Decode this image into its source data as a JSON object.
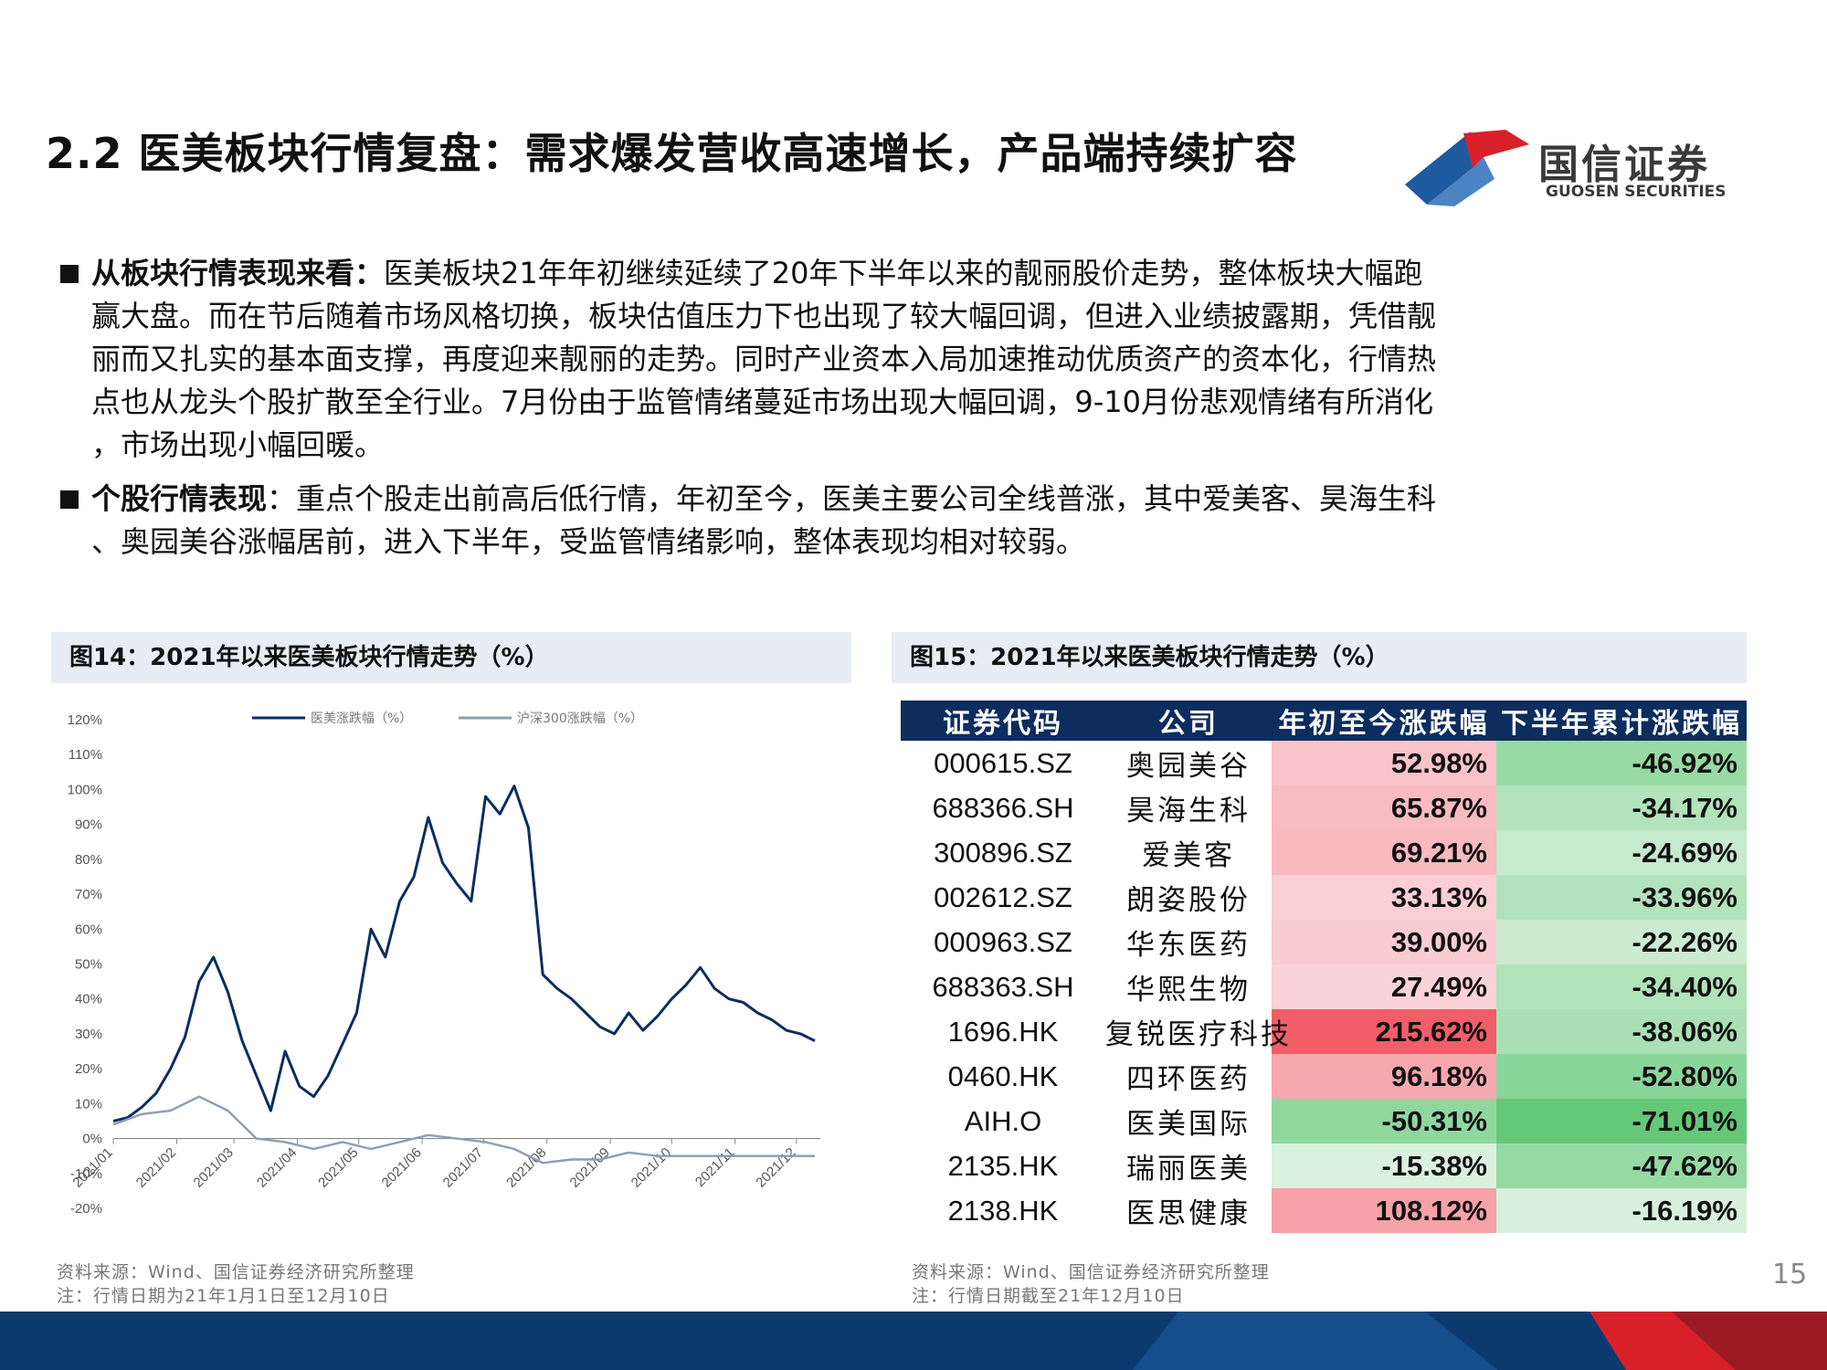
{
  "header": {
    "title": "2.2 医美板块行情复盘：需求爆发营收高速增长，产品端持续扩容",
    "logo_name": "国信证券",
    "logo_sub": "GUOSEN SECURITIES"
  },
  "bullets": [
    {
      "lead": "从板块行情表现来看：",
      "lines": [
        "医美板块21年年初继续延续了20年下半年以来的靓丽股价走势，整体板块大幅跑",
        "赢大盘。而在节后随着市场风格切换，板块估值压力下也出现了较大幅回调，但进入业绩披露期，凭借靓",
        "丽而又扎实的基本面支撑，再度迎来靓丽的走势。同时产业资本入局加速推动优质资产的资本化，行情热",
        "点也从龙头个股扩散至全行业。7月份由于监管情绪蔓延市场出现大幅回调，9-10月份悲观情绪有所消化",
        "，市场出现小幅回暖。"
      ]
    },
    {
      "lead": "个股行情表现",
      "lines": [
        "：重点个股走出前高后低行情，年初至今，医美主要公司全线普涨，其中爱美客、昊海生科",
        "、奥园美谷涨幅居前，进入下半年，受监管情绪影响，整体表现均相对较弱。"
      ]
    }
  ],
  "fig14": {
    "title": "图14：2021年以来医美板块行情走势（%）",
    "source": "资料来源：Wind、国信证券经济研究所整理",
    "note": "注：行情日期为21年1月1日至12月10日"
  },
  "fig15": {
    "title": "图15：2021年以来医美板块行情走势（%）",
    "source": "资料来源：Wind、国信证券经济研究所整理",
    "note": "注：行情日期截至21年12月10日"
  },
  "page_number": "15",
  "colors": {
    "navy": "#0c2d5e",
    "gray_series": "#8f9db1",
    "logo_red": "#d8202b",
    "logo_blue": "#1e5aa0"
  },
  "chart_data": {
    "type": "line",
    "title": "",
    "ylim": [
      -20,
      120
    ],
    "yticks": [
      "-20%",
      "-10%",
      "0%",
      "10%",
      "20%",
      "30%",
      "40%",
      "50%",
      "60%",
      "70%",
      "80%",
      "90%",
      "100%",
      "110%",
      "120%"
    ],
    "xticks": [
      "2021/01",
      "2021/02",
      "2021/03",
      "2021/04",
      "2021/05",
      "2021/06",
      "2021/07",
      "2021/08",
      "2021/09",
      "2021/10",
      "2021/11",
      "2021/12"
    ],
    "legend_position": "top-center",
    "grid": false,
    "series": [
      {
        "name": "医美涨跌幅（%）",
        "color": "#0c2d5e",
        "points": [
          [
            "2021-01-01",
            5
          ],
          [
            "2021-01-08",
            6
          ],
          [
            "2021-01-15",
            9
          ],
          [
            "2021-01-22",
            13
          ],
          [
            "2021-01-29",
            20
          ],
          [
            "2021-02-05",
            29
          ],
          [
            "2021-02-12",
            45
          ],
          [
            "2021-02-19",
            52
          ],
          [
            "2021-02-26",
            42
          ],
          [
            "2021-03-05",
            28
          ],
          [
            "2021-03-12",
            18
          ],
          [
            "2021-03-19",
            8
          ],
          [
            "2021-03-26",
            25
          ],
          [
            "2021-04-02",
            15
          ],
          [
            "2021-04-09",
            12
          ],
          [
            "2021-04-16",
            18
          ],
          [
            "2021-04-23",
            27
          ],
          [
            "2021-04-30",
            36
          ],
          [
            "2021-05-07",
            60
          ],
          [
            "2021-05-14",
            52
          ],
          [
            "2021-05-21",
            68
          ],
          [
            "2021-05-28",
            75
          ],
          [
            "2021-06-04",
            92
          ],
          [
            "2021-06-11",
            79
          ],
          [
            "2021-06-18",
            73
          ],
          [
            "2021-06-25",
            68
          ],
          [
            "2021-07-02",
            98
          ],
          [
            "2021-07-09",
            93
          ],
          [
            "2021-07-16",
            101
          ],
          [
            "2021-07-23",
            89
          ],
          [
            "2021-07-30",
            47
          ],
          [
            "2021-08-06",
            43
          ],
          [
            "2021-08-13",
            40
          ],
          [
            "2021-08-20",
            36
          ],
          [
            "2021-08-27",
            32
          ],
          [
            "2021-09-03",
            30
          ],
          [
            "2021-09-10",
            36
          ],
          [
            "2021-09-17",
            31
          ],
          [
            "2021-09-24",
            35
          ],
          [
            "2021-10-01",
            40
          ],
          [
            "2021-10-08",
            44
          ],
          [
            "2021-10-15",
            49
          ],
          [
            "2021-10-22",
            43
          ],
          [
            "2021-10-29",
            40
          ],
          [
            "2021-11-05",
            39
          ],
          [
            "2021-11-12",
            36
          ],
          [
            "2021-11-19",
            34
          ],
          [
            "2021-11-26",
            31
          ],
          [
            "2021-12-03",
            30
          ],
          [
            "2021-12-10",
            28
          ]
        ]
      },
      {
        "name": "沪深300涨跌幅（%）",
        "color": "#8f9db1",
        "points": [
          [
            "2021-01-01",
            4
          ],
          [
            "2021-01-15",
            7
          ],
          [
            "2021-01-29",
            8
          ],
          [
            "2021-02-12",
            12
          ],
          [
            "2021-02-26",
            8
          ],
          [
            "2021-03-12",
            0
          ],
          [
            "2021-03-26",
            -1
          ],
          [
            "2021-04-09",
            -3
          ],
          [
            "2021-04-23",
            -1
          ],
          [
            "2021-05-07",
            -3
          ],
          [
            "2021-05-21",
            -1
          ],
          [
            "2021-06-04",
            1
          ],
          [
            "2021-06-18",
            0
          ],
          [
            "2021-07-02",
            -1
          ],
          [
            "2021-07-16",
            -3
          ],
          [
            "2021-07-30",
            -7
          ],
          [
            "2021-08-13",
            -6
          ],
          [
            "2021-08-27",
            -6
          ],
          [
            "2021-09-10",
            -4
          ],
          [
            "2021-09-24",
            -5
          ],
          [
            "2021-10-08",
            -5
          ],
          [
            "2021-10-22",
            -5
          ],
          [
            "2021-11-05",
            -5
          ],
          [
            "2021-11-19",
            -5
          ],
          [
            "2021-12-03",
            -5
          ],
          [
            "2021-12-10",
            -5
          ]
        ]
      }
    ]
  },
  "table": {
    "headers": [
      "证券代码",
      "公司",
      "年初至今涨跌幅",
      "下半年累计涨跌幅"
    ],
    "rows": [
      {
        "code": "000615.SZ",
        "company": "奥园美谷",
        "ytd": "52.98%",
        "ytd_value": 52.98,
        "h2": "-46.92%",
        "h2_value": -46.92
      },
      {
        "code": "688366.SH",
        "company": "昊海生科",
        "ytd": "65.87%",
        "ytd_value": 65.87,
        "h2": "-34.17%",
        "h2_value": -34.17
      },
      {
        "code": "300896.SZ",
        "company": "爱美客",
        "ytd": "69.21%",
        "ytd_value": 69.21,
        "h2": "-24.69%",
        "h2_value": -24.69
      },
      {
        "code": "002612.SZ",
        "company": "朗姿股份",
        "ytd": "33.13%",
        "ytd_value": 33.13,
        "h2": "-33.96%",
        "h2_value": -33.96
      },
      {
        "code": "000963.SZ",
        "company": "华东医药",
        "ytd": "39.00%",
        "ytd_value": 39.0,
        "h2": "-22.26%",
        "h2_value": -22.26
      },
      {
        "code": "688363.SH",
        "company": "华熙生物",
        "ytd": "27.49%",
        "ytd_value": 27.49,
        "h2": "-34.40%",
        "h2_value": -34.4
      },
      {
        "code": "1696.HK",
        "company": "复锐医疗科技",
        "ytd": "215.62%",
        "ytd_value": 215.62,
        "h2": "-38.06%",
        "h2_value": -38.06
      },
      {
        "code": "0460.HK",
        "company": "四环医药",
        "ytd": "96.18%",
        "ytd_value": 96.18,
        "h2": "-52.80%",
        "h2_value": -52.8
      },
      {
        "code": "AIH.O",
        "company": "医美国际",
        "ytd": "-50.31%",
        "ytd_value": -50.31,
        "h2": "-71.01%",
        "h2_value": -71.01
      },
      {
        "code": "2135.HK",
        "company": "瑞丽医美",
        "ytd": "-15.38%",
        "ytd_value": -15.38,
        "h2": "-47.62%",
        "h2_value": -47.62
      },
      {
        "code": "2138.HK",
        "company": "医思健康",
        "ytd": "108.12%",
        "ytd_value": 108.12,
        "h2": "-16.19%",
        "h2_value": -16.19
      }
    ]
  }
}
